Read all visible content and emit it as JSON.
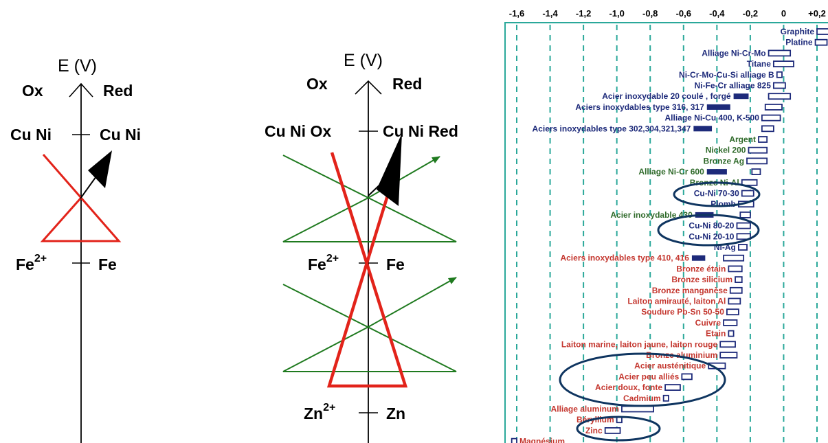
{
  "colors": {
    "red": "#e2231a",
    "green": "#1f7a1f",
    "navy": "#1d2a7a",
    "teal_frame": "#2aa89a",
    "ellipse": "#0f3560",
    "noble_text": "#1d2a7a",
    "mid_text": "#2f6a2a",
    "active_text": "#c4372f"
  },
  "panel1": {
    "axis_label": "E (V)",
    "ox": "Ox",
    "red": "Red",
    "upper_left": "Cu Ni",
    "upper_right": "Cu Ni",
    "lower_left": "Fe",
    "lower_left_sup": "2+",
    "lower_right": "Fe"
  },
  "panel2": {
    "axis_label": "E (V)",
    "ox": "Ox",
    "red": "Red",
    "upper_left": "Cu Ni Ox",
    "upper_right": "Cu Ni Red",
    "mid_left": "Fe",
    "mid_left_sup": "2+",
    "mid_right": "Fe",
    "lower_left": "Zn",
    "lower_left_sup": "2+",
    "lower_right": "Zn"
  },
  "chart_data": {
    "type": "galvanic_series",
    "axis_ticks": [
      "-1,6",
      "-1,4",
      "-1,2",
      "-1,0",
      "-0,8",
      "-0,6",
      "-0,4",
      "-0,2",
      "0",
      "+0,2"
    ],
    "axis_values": [
      -1.6,
      -1.4,
      -1.2,
      -1.0,
      -0.8,
      -0.6,
      -0.4,
      -0.2,
      0,
      0.2
    ],
    "items": [
      {
        "name": "Graphite",
        "lo": 0.2,
        "hi": 0.3,
        "group": "noble"
      },
      {
        "name": "Platine",
        "lo": 0.19,
        "hi": 0.26,
        "group": "noble"
      },
      {
        "name": "Alliage Ni-Cr-Mo",
        "lo": -0.09,
        "hi": 0.04,
        "group": "noble"
      },
      {
        "name": "Titane",
        "lo": -0.06,
        "hi": 0.06,
        "group": "noble"
      },
      {
        "name": "Ni-Cr-Mo-Cu-Si alliage B",
        "lo": -0.04,
        "hi": -0.01,
        "group": "noble"
      },
      {
        "name": "Ni-Fe-Cr alliage 825",
        "lo": -0.06,
        "hi": 0.01,
        "group": "noble"
      },
      {
        "name": "Acier inoxydable 20 coulé , forgé",
        "lo": -0.09,
        "hi": 0.04,
        "group": "noble",
        "active": [
          -0.3,
          -0.21
        ]
      },
      {
        "name": "Aciers inoxydables type 316, 317",
        "lo": -0.11,
        "hi": -0.01,
        "group": "noble",
        "active": [
          -0.46,
          -0.32
        ]
      },
      {
        "name": "Alliage Ni-Cu 400, K-500",
        "lo": -0.13,
        "hi": -0.02,
        "group": "noble"
      },
      {
        "name": "Aciers inoxydables type 302,304,321,347",
        "lo": -0.13,
        "hi": -0.06,
        "group": "noble",
        "active": [
          -0.54,
          -0.43
        ]
      },
      {
        "name": "Argent",
        "lo": -0.15,
        "hi": -0.1,
        "group": "mid"
      },
      {
        "name": "Nickel 200",
        "lo": -0.21,
        "hi": -0.1,
        "group": "mid"
      },
      {
        "name": "Bronze Ag",
        "lo": -0.22,
        "hi": -0.1,
        "group": "mid"
      },
      {
        "name": "Alliage Ni-Cr 600",
        "lo": -0.19,
        "hi": -0.14,
        "group": "mid",
        "active": [
          -0.46,
          -0.34
        ]
      },
      {
        "name": "Bronze Ni-Al",
        "lo": -0.25,
        "hi": -0.16,
        "group": "mid"
      },
      {
        "name": "Cu-Ni 70-30",
        "lo": -0.25,
        "hi": -0.18,
        "group": "noble"
      },
      {
        "name": "Plomb",
        "lo": -0.27,
        "hi": -0.18,
        "group": "noble"
      },
      {
        "name": "Acier inoxydable  430",
        "lo": -0.26,
        "hi": -0.2,
        "group": "mid",
        "active": [
          -0.53,
          -0.42
        ]
      },
      {
        "name": "Cu-Ni 80-20",
        "lo": -0.28,
        "hi": -0.2,
        "group": "noble"
      },
      {
        "name": "Cu-Ni 20-10",
        "lo": -0.28,
        "hi": -0.2,
        "group": "noble"
      },
      {
        "name": "Ni-Ag",
        "lo": -0.27,
        "hi": -0.22,
        "group": "noble"
      },
      {
        "name": "Aciers inoxydables type 410, 416",
        "lo": -0.36,
        "hi": -0.24,
        "group": "active",
        "active": [
          -0.55,
          -0.47
        ]
      },
      {
        "name": "Bronze étain",
        "lo": -0.33,
        "hi": -0.25,
        "group": "active"
      },
      {
        "name": "Bronze silicium",
        "lo": -0.29,
        "hi": -0.25,
        "group": "active"
      },
      {
        "name": "Bronze manganèse",
        "lo": -0.32,
        "hi": -0.25,
        "group": "active"
      },
      {
        "name": "Laiton amirauté, laiton Al",
        "lo": -0.33,
        "hi": -0.26,
        "group": "active"
      },
      {
        "name": "Soudure Pb-Sn 50-50",
        "lo": -0.34,
        "hi": -0.27,
        "group": "active"
      },
      {
        "name": "Cuivre",
        "lo": -0.36,
        "hi": -0.28,
        "group": "active"
      },
      {
        "name": "Etain",
        "lo": -0.33,
        "hi": -0.3,
        "group": "active"
      },
      {
        "name": "Laiton marine, laiton jaune, laiton rouge",
        "lo": -0.38,
        "hi": -0.29,
        "group": "active"
      },
      {
        "name": "Bronze aluminium",
        "lo": -0.38,
        "hi": -0.28,
        "group": "active"
      },
      {
        "name": "Acier austénitique",
        "lo": -0.45,
        "hi": -0.35,
        "group": "active"
      },
      {
        "name": "Acier peu alliés",
        "lo": -0.61,
        "hi": -0.55,
        "group": "active"
      },
      {
        "name": "Acier doux, fonte",
        "lo": -0.71,
        "hi": -0.62,
        "group": "active"
      },
      {
        "name": "Cadmium",
        "lo": -0.72,
        "hi": -0.69,
        "group": "active"
      },
      {
        "name": "Alliage aluminum",
        "lo": -0.97,
        "hi": -0.78,
        "group": "active"
      },
      {
        "name": "Béryllium",
        "lo": -1.0,
        "hi": -0.97,
        "group": "active"
      },
      {
        "name": "Zinc",
        "lo": -1.07,
        "hi": -0.98,
        "group": "active"
      },
      {
        "name": "Magnésium",
        "lo": -1.63,
        "hi": -1.6,
        "group": "active"
      }
    ]
  }
}
